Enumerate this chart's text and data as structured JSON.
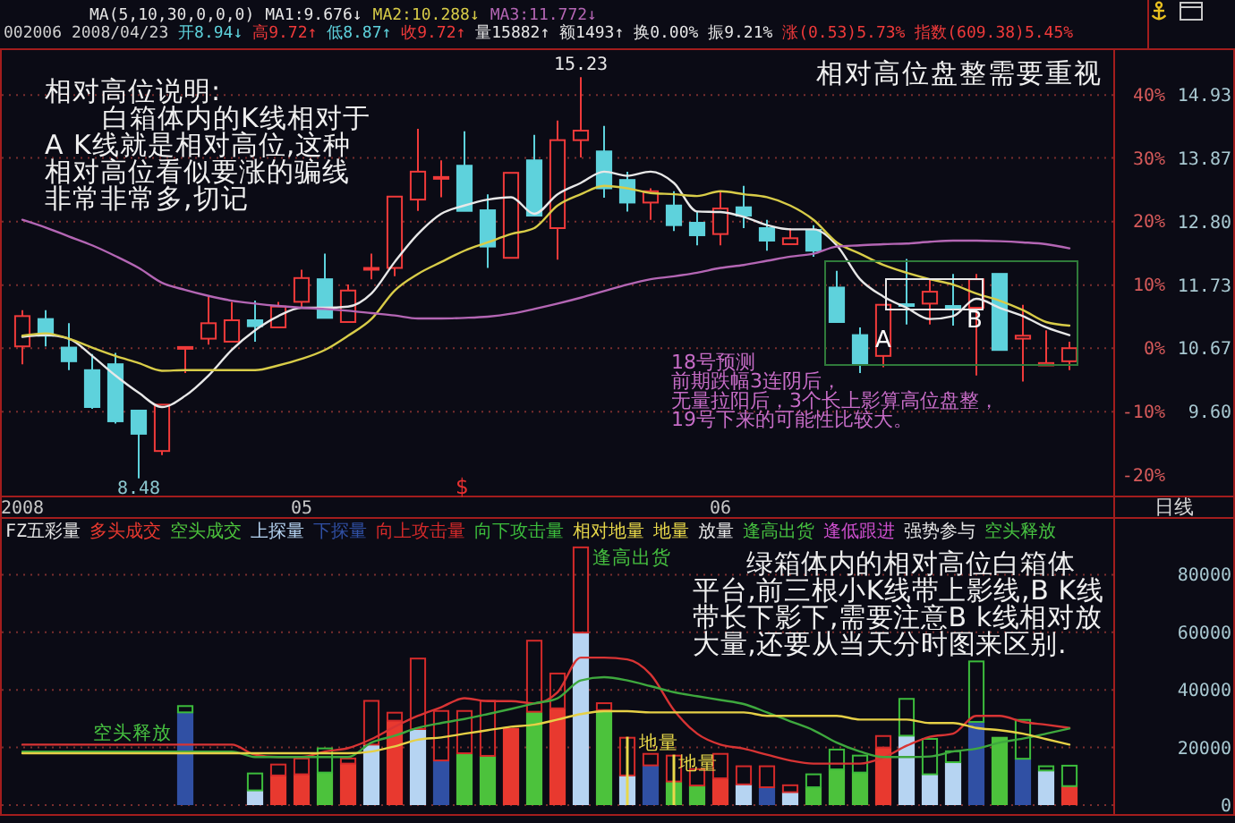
{
  "chart_data": [
    {
      "type": "candlestick",
      "subtitle": "002006 2008/04/23 开8.94↓ 高9.72↑ 低8.87↑ 收9.72↑ 量15882↑ 额1493↑ 换0.00% 振9.21% 涨(0.53)5.73% 指数(609.38)5.45%",
      "legend_title": "MA(5,10,30,0,0,0)",
      "legend": "top",
      "categories": [
        "2008",
        null,
        null,
        null,
        null,
        null,
        null,
        null,
        null,
        null,
        null,
        null,
        "05",
        null,
        null,
        null,
        null,
        null,
        null,
        null,
        null,
        null,
        null,
        null,
        null,
        null,
        null,
        null,
        null,
        null,
        "06",
        null,
        null,
        null,
        null,
        null,
        null,
        null,
        null,
        null,
        null,
        null,
        null,
        null,
        null,
        null
      ],
      "ohlc": [
        [
          10.7,
          11.31,
          10.4,
          11.21
        ],
        [
          11.16,
          11.31,
          10.7,
          10.88
        ],
        [
          10.68,
          11.09,
          10.3,
          10.45
        ],
        [
          10.3,
          10.57,
          9.65,
          9.68
        ],
        [
          10.4,
          10.59,
          9.4,
          9.44
        ],
        [
          9.62,
          9.62,
          8.48,
          9.23
        ],
        [
          8.94,
          9.72,
          8.87,
          9.72
        ],
        [
          10.69,
          10.69,
          10.25,
          10.69
        ],
        [
          10.83,
          11.54,
          10.73,
          11.09
        ],
        [
          10.78,
          11.45,
          10.78,
          11.14
        ],
        [
          11.14,
          11.47,
          10.78,
          11.04
        ],
        [
          11.02,
          11.45,
          11.02,
          11.37
        ],
        [
          11.45,
          11.99,
          11.37,
          11.85
        ],
        [
          11.83,
          12.26,
          11.18,
          11.18
        ],
        [
          11.11,
          11.74,
          11.11,
          11.64
        ],
        [
          12.0,
          12.26,
          11.83,
          12.02
        ],
        [
          12.02,
          13.22,
          11.88,
          13.22
        ],
        [
          13.17,
          14.36,
          12.98,
          13.64
        ],
        [
          13.54,
          13.83,
          13.21,
          13.55
        ],
        [
          13.74,
          14.32,
          12.98,
          12.98
        ],
        [
          12.99,
          13.26,
          12.02,
          12.38
        ],
        [
          12.19,
          13.62,
          12.19,
          13.62
        ],
        [
          13.83,
          14.26,
          12.9,
          12.9
        ],
        [
          12.69,
          14.5,
          12.16,
          14.17
        ],
        [
          14.17,
          15.23,
          13.88,
          14.33
        ],
        [
          13.98,
          14.41,
          13.2,
          13.36
        ],
        [
          13.5,
          13.64,
          12.97,
          13.12
        ],
        [
          13.12,
          13.36,
          12.83,
          13.31
        ],
        [
          13.07,
          13.31,
          12.64,
          12.74
        ],
        [
          12.78,
          12.97,
          12.4,
          12.57
        ],
        [
          12.59,
          13.31,
          12.4,
          13.02
        ],
        [
          13.04,
          13.4,
          12.69,
          12.9
        ],
        [
          12.69,
          12.83,
          12.31,
          12.48
        ],
        [
          12.42,
          12.69,
          12.42,
          12.52
        ],
        [
          12.66,
          12.74,
          12.21,
          12.31
        ],
        [
          11.69,
          11.97,
          11.11,
          11.11
        ],
        [
          10.89,
          11.02,
          10.25,
          10.4
        ],
        [
          10.54,
          11.4,
          10.35,
          11.4
        ],
        [
          11.41,
          12.17,
          11.07,
          11.4
        ],
        [
          11.42,
          11.83,
          11.07,
          11.62
        ],
        [
          11.38,
          11.92,
          11.05,
          11.35
        ],
        [
          11.35,
          11.92,
          10.21,
          11.83
        ],
        [
          11.92,
          11.92,
          10.64,
          10.64
        ],
        [
          10.83,
          11.4,
          10.11,
          10.88
        ],
        [
          10.38,
          10.97,
          10.38,
          10.42
        ],
        [
          10.45,
          10.78,
          10.3,
          10.67
        ]
      ],
      "series": [
        {
          "name": "MA1:9.676↓",
          "type": "line",
          "color": "#e8e8e8",
          "values": [
            10.86,
            10.89,
            10.83,
            10.54,
            10.21,
            9.92,
            9.68,
            9.87,
            10.21,
            10.64,
            10.97,
            11.21,
            11.35,
            11.35,
            11.37,
            11.59,
            12.12,
            12.59,
            12.93,
            13.07,
            13.17,
            13.21,
            12.93,
            13.26,
            13.45,
            13.64,
            13.57,
            13.64,
            13.45,
            12.97,
            12.96,
            12.88,
            12.74,
            12.67,
            12.67,
            12.4,
            11.83,
            11.54,
            11.35,
            11.16,
            11.21,
            11.5,
            11.35,
            11.21,
            11.02,
            10.89
          ]
        },
        {
          "name": "MA2:10.288↓",
          "type": "line",
          "color": "#d8cc48",
          "values": [
            10.88,
            10.92,
            10.83,
            10.68,
            10.54,
            10.42,
            10.29,
            10.3,
            10.3,
            10.3,
            10.3,
            10.38,
            10.49,
            10.64,
            10.88,
            11.16,
            11.64,
            11.92,
            12.12,
            12.31,
            12.45,
            12.59,
            12.69,
            13.07,
            13.26,
            13.4,
            13.36,
            13.28,
            13.26,
            13.23,
            13.31,
            13.26,
            13.21,
            13.07,
            12.83,
            12.45,
            12.26,
            12.07,
            11.94,
            11.83,
            11.74,
            11.59,
            11.47,
            11.31,
            11.11,
            11.05
          ]
        },
        {
          "name": "MA3:11.772↓",
          "type": "line",
          "color": "#b466b4",
          "values": [
            12.83,
            12.7,
            12.55,
            12.4,
            12.22,
            12.02,
            11.77,
            11.65,
            11.55,
            11.47,
            11.42,
            11.38,
            11.35,
            11.33,
            11.3,
            11.26,
            11.22,
            11.17,
            11.17,
            11.18,
            11.2,
            11.25,
            11.33,
            11.42,
            11.52,
            11.63,
            11.74,
            11.83,
            11.88,
            11.94,
            12.02,
            12.07,
            12.14,
            12.21,
            12.26,
            12.38,
            12.4,
            12.42,
            12.43,
            12.46,
            12.48,
            12.48,
            12.47,
            12.45,
            12.42,
            12.35
          ]
        }
      ],
      "ylim": [
        8.19,
        15.7
      ],
      "yticks": [
        {
          "value": 9.6,
          "label": "9.60"
        },
        10.67,
        11.73,
        {
          "value": 12.8,
          "label": "12.80"
        },
        13.87,
        14.93
      ],
      "y2lim": [
        -23.24,
        47.14
      ],
      "y2ticks": [
        {
          "value": -20,
          "label": "-20%"
        },
        {
          "value": -10,
          "label": "-10%"
        },
        {
          "value": 0,
          "label": "0%"
        },
        {
          "value": 10,
          "label": "10%"
        },
        {
          "value": 20,
          "label": "20%"
        },
        {
          "value": 30,
          "label": "30%"
        },
        {
          "value": 40,
          "label": "40%"
        }
      ],
      "grid": "y",
      "annotations": [
        "相对高位说明:白箱体内的K线相对于A K线就是相对高位,这种相对高位看似要涨的骗线非常非常多,切记",
        "相对高位盘整需要重视",
        "18号预测前期跌幅3连阴后，无量拉阳后，3个长上影算高位盘整，19号下来的可能性比较大。",
        "A",
        "B",
        {
          "text": "15.23",
          "y": 15.23
        },
        {
          "text": "8.48",
          "y": 8.48
        },
        "$",
        "日线"
      ]
    },
    {
      "type": "bar",
      "stacked": true,
      "legend_title": "FZ五彩量",
      "legend": "top",
      "tick_labels": "y",
      "categories": [
        null,
        null,
        null,
        null,
        null,
        null,
        null,
        null,
        null,
        null,
        null,
        null,
        null,
        null,
        null,
        null,
        null,
        null,
        null,
        null,
        null,
        null,
        null,
        null,
        null,
        null,
        null,
        null,
        null,
        null,
        null,
        null,
        null,
        null,
        null,
        null,
        null,
        null,
        null,
        null,
        null,
        null,
        null,
        null,
        null,
        null
      ],
      "series": [
        {
          "name": "多头成交",
          "type": "bar",
          "color": "#e8392f",
          "values": [
            null,
            null,
            null,
            null,
            null,
            null,
            null,
            null,
            null,
            null,
            null,
            10300,
            10700,
            null,
            14400,
            null,
            29300,
            null,
            null,
            null,
            null,
            26800,
            null,
            33600,
            null,
            null,
            null,
            null,
            null,
            null,
            9300,
            null,
            null,
            null,
            null,
            null,
            null,
            20000,
            null,
            null,
            null,
            null,
            null,
            null,
            null,
            6600
          ]
        },
        {
          "name": "空头成交",
          "type": "bar",
          "color": "#4cc23c",
          "values": [
            null,
            null,
            null,
            null,
            null,
            null,
            null,
            null,
            null,
            null,
            null,
            null,
            null,
            11300,
            null,
            null,
            null,
            null,
            null,
            18000,
            17100,
            null,
            32400,
            null,
            null,
            33000,
            null,
            null,
            8200,
            6800,
            null,
            null,
            null,
            null,
            6200,
            12400,
            11300,
            null,
            null,
            null,
            null,
            null,
            23700,
            null,
            null,
            null
          ]
        },
        {
          "name": "上探量",
          "type": "bar",
          "color": "#b6d4f2",
          "values": [
            null,
            null,
            null,
            null,
            null,
            null,
            null,
            null,
            null,
            null,
            5100,
            null,
            null,
            null,
            null,
            21000,
            null,
            26400,
            null,
            null,
            null,
            null,
            null,
            null,
            59900,
            null,
            10300,
            null,
            null,
            null,
            null,
            7200,
            null,
            4500,
            null,
            null,
            null,
            null,
            24100,
            10700,
            14900,
            null,
            null,
            null,
            12000,
            null
          ]
        },
        {
          "name": "下探量",
          "type": "bar",
          "color": "#3050a4",
          "values": [
            null,
            null,
            null,
            null,
            null,
            null,
            null,
            32200,
            null,
            null,
            null,
            null,
            null,
            null,
            null,
            null,
            null,
            null,
            15500,
            null,
            null,
            null,
            null,
            null,
            null,
            null,
            null,
            13800,
            null,
            null,
            null,
            null,
            6200,
            null,
            null,
            null,
            null,
            null,
            null,
            null,
            null,
            28900,
            null,
            16100,
            null,
            null
          ]
        },
        {
          "name": "向上攻击量",
          "type": "bar",
          "color": "#d42a2a",
          "line_style": "solid",
          "values": [
            null,
            null,
            null,
            null,
            null,
            null,
            null,
            null,
            null,
            null,
            null,
            4100,
            5800,
            null,
            2100,
            15500,
            3100,
            24800,
            17500,
            15000,
            19400,
            null,
            25000,
            12400,
            29900,
            2700,
            13400,
            4300,
            9300,
            6000,
            8800,
            6600,
            7600,
            2700,
            null,
            null,
            null,
            4300,
            null,
            null,
            null,
            null,
            null,
            null,
            null,
            null
          ]
        },
        {
          "name": "向下攻击量",
          "type": "bar",
          "color": "#3cbc3c",
          "line_style": "solid",
          "values": [
            null,
            null,
            null,
            null,
            null,
            null,
            null,
            2500,
            null,
            null,
            6200,
            null,
            null,
            8700,
            null,
            null,
            null,
            null,
            null,
            null,
            null,
            null,
            null,
            null,
            null,
            null,
            null,
            null,
            null,
            null,
            null,
            null,
            null,
            null,
            4800,
            7200,
            6200,
            null,
            13100,
            12600,
            4100,
            21300,
            null,
            13800,
            1800,
            7400
          ]
        },
        {
          "type": "line",
          "color": "#d83434",
          "values": [
            21000,
            21000,
            21000,
            21000,
            21000,
            21000,
            21000,
            21000,
            21000,
            21000,
            17500,
            16700,
            16700,
            18600,
            19800,
            22900,
            27200,
            31000,
            34000,
            37100,
            36100,
            36100,
            35300,
            39200,
            51200,
            51200,
            50600,
            45400,
            33000,
            24800,
            21000,
            19600,
            17500,
            15500,
            14400,
            14400,
            14400,
            16500,
            20600,
            23700,
            24800,
            31000,
            31000,
            28900,
            27900,
            26800
          ]
        },
        {
          "type": "line",
          "color": "#3ea83e",
          "values": [
            18600,
            18600,
            18600,
            18600,
            18600,
            18600,
            18600,
            18600,
            18600,
            18600,
            16700,
            16700,
            16700,
            16700,
            16700,
            21700,
            24100,
            26800,
            28500,
            29900,
            31600,
            33400,
            35300,
            37100,
            43300,
            44400,
            43300,
            41300,
            39200,
            37800,
            36500,
            35100,
            32200,
            29100,
            26000,
            21700,
            18600,
            16700,
            16700,
            16900,
            18600,
            19600,
            21700,
            23100,
            24800,
            26600
          ]
        },
        {
          "type": "line",
          "color": "#e6d046",
          "values": [
            18000,
            18000,
            18000,
            18000,
            18000,
            18000,
            18000,
            18000,
            18000,
            18000,
            18000,
            18000,
            18000,
            18000,
            18000,
            18600,
            20400,
            22700,
            23500,
            24800,
            26000,
            27200,
            27900,
            29700,
            31600,
            32600,
            32600,
            32200,
            32200,
            32200,
            32200,
            32200,
            31000,
            31000,
            31000,
            31000,
            29700,
            29700,
            29700,
            28500,
            28500,
            26800,
            26000,
            24800,
            22900,
            21000
          ]
        }
      ],
      "ylim": [
        0,
        99700
      ],
      "yticks": [
        0,
        20000,
        40000,
        60000,
        80000
      ],
      "grid": "y",
      "annotations": [
        "相对地量",
        "地量",
        "放量",
        "逢高出货",
        "逢低跟进",
        "强势参与",
        "空头释放",
        "逢高出货",
        "地量",
        "地量",
        "空头释放",
        "绿箱体内的相对高位白箱体平台,前三根小K线带上影线,B K线带长下影下,需要注意B k线相对放大量,还要从当天分时图来区别."
      ]
    }
  ]
}
